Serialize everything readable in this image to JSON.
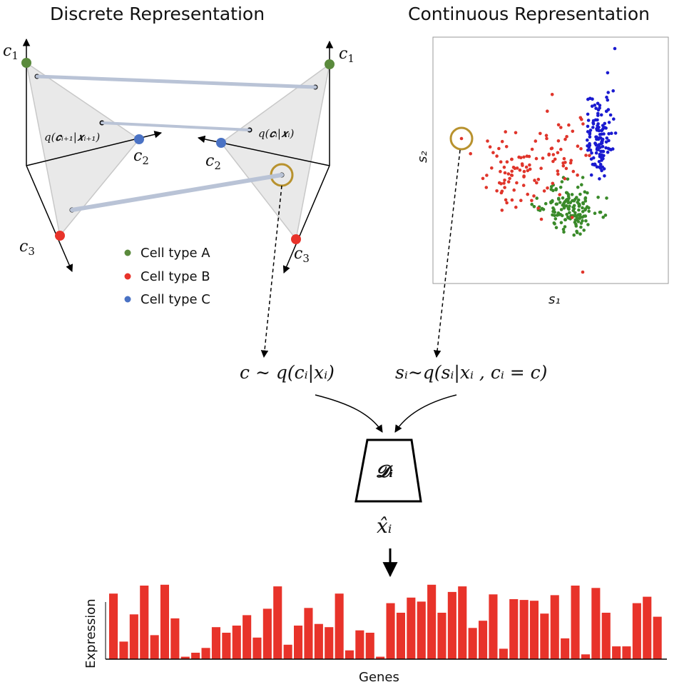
{
  "titles": {
    "discrete": "Discrete Representation",
    "continuous": "Continuous Representation"
  },
  "left_simplex": {
    "c1": "c",
    "c1_sub": "1",
    "c2": "c",
    "c2_sub": "2",
    "c3": "c",
    "c3_sub": "3",
    "q_label": "q(𝒄ᵢ₊₁|𝒙ᵢ₊₁)"
  },
  "right_simplex": {
    "c1": "c",
    "c1_sub": "1",
    "c2": "c",
    "c2_sub": "2",
    "c3": "c",
    "c3_sub": "3",
    "q_label": "q(𝒄ᵢ|𝒙ᵢ)"
  },
  "legend": [
    {
      "label": "Cell type A",
      "color": "#5a8a3c"
    },
    {
      "label": "Cell type B",
      "color": "#e8332a"
    },
    {
      "label": "Cell type C",
      "color": "#4a72c4"
    }
  ],
  "scatter": {
    "xlabel": "s₁",
    "ylabel": "s₂",
    "colors": {
      "A": "#3a8a2a",
      "B": "#e0352b",
      "C": "#1a1ad0"
    }
  },
  "equations": {
    "discrete": "c ∼ q(cᵢ|xᵢ)",
    "continuous": "sᵢ∼q(sᵢ|xᵢ , cᵢ = c)"
  },
  "decoder": {
    "label": "𝓓ᵢ",
    "output": "x̂ᵢ"
  },
  "chart_data": {
    "type": "bar",
    "xlabel": "Genes",
    "ylabel": "Expression",
    "color": "#e8332a",
    "ylim": [
      0,
      1
    ],
    "values": [
      0.82,
      0.22,
      0.56,
      0.92,
      0.3,
      0.93,
      0.51,
      0.03,
      0.08,
      0.14,
      0.4,
      0.33,
      0.42,
      0.55,
      0.27,
      0.63,
      0.91,
      0.18,
      0.42,
      0.64,
      0.44,
      0.4,
      0.82,
      0.11,
      0.36,
      0.33,
      0.03,
      0.7,
      0.58,
      0.77,
      0.72,
      0.93,
      0.58,
      0.84,
      0.91,
      0.39,
      0.48,
      0.81,
      0.13,
      0.75,
      0.74,
      0.73,
      0.57,
      0.8,
      0.26,
      0.92,
      0.06,
      0.89,
      0.58,
      0.16,
      0.16,
      0.7,
      0.78,
      0.53
    ]
  }
}
